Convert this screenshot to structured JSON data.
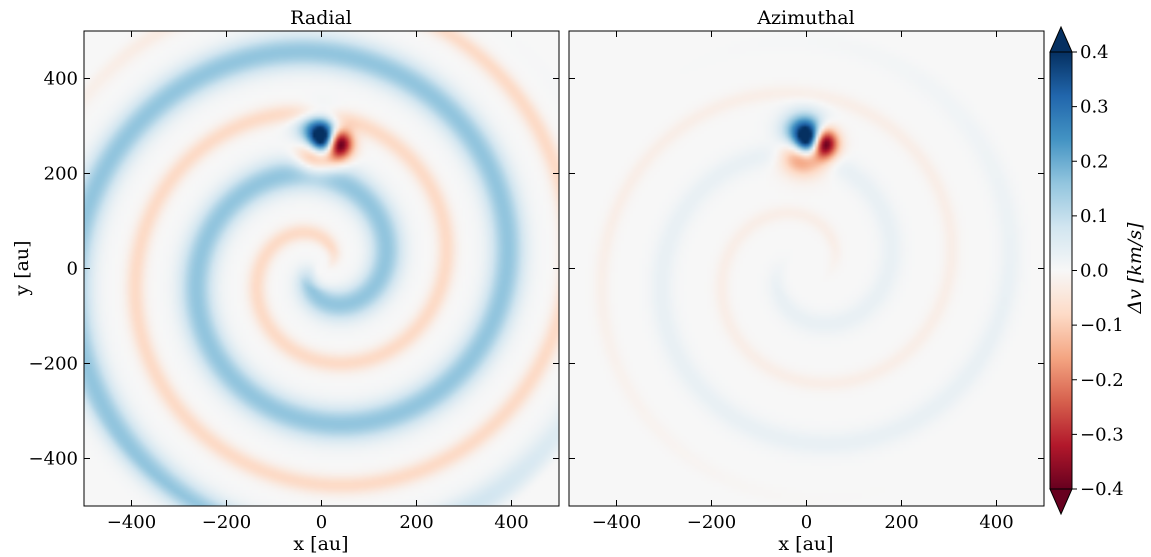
{
  "chart_data": [
    {
      "type": "heatmap",
      "title": "Radial",
      "xlabel": "x [au]",
      "ylabel": "y [au]",
      "xlim": [
        -500,
        500
      ],
      "ylim": [
        -500,
        500
      ],
      "xticks": [
        -400,
        -200,
        0,
        200,
        400
      ],
      "yticks": [
        -400,
        -200,
        0,
        200,
        400
      ],
      "xtick_labels": [
        "−400",
        "−200",
        "0",
        "200",
        "400"
      ],
      "ytick_labels": [
        "−400",
        "−200",
        "0",
        "200",
        "400"
      ],
      "features": [
        {
          "kind": "spiral-band",
          "r_start": 15,
          "r_end": 560,
          "arms": 1,
          "turns": 2.1,
          "phase_deg": 200,
          "amplitude": 0.16,
          "width": 26
        },
        {
          "kind": "spiral-band",
          "r_start": 15,
          "r_end": 560,
          "arms": 1,
          "turns": 2.1,
          "phase_deg": 20,
          "amplitude": -0.08,
          "width": 14
        },
        {
          "kind": "vortex",
          "x": 20,
          "y": 265,
          "amplitude": 0.4
        }
      ]
    },
    {
      "type": "heatmap",
      "title": "Azimuthal",
      "xlabel": "x [au]",
      "ylabel": "",
      "xlim": [
        -500,
        500
      ],
      "ylim": [
        -500,
        500
      ],
      "xticks": [
        -400,
        -200,
        0,
        200,
        400
      ],
      "yticks": [
        -400,
        -200,
        0,
        200,
        400
      ],
      "xtick_labels": [
        "−400",
        "−200",
        "0",
        "200",
        "400"
      ],
      "ytick_labels": [],
      "features": [
        {
          "kind": "spiral-band",
          "r_start": 60,
          "r_end": 420,
          "arms": 1,
          "turns": 1.4,
          "phase_deg": 200,
          "amplitude": 0.03,
          "width": 18
        },
        {
          "kind": "spiral-band",
          "r_start": 60,
          "r_end": 420,
          "arms": 1,
          "turns": 1.4,
          "phase_deg": 20,
          "amplitude": -0.025,
          "width": 12
        },
        {
          "kind": "vortex",
          "x": 20,
          "y": 265,
          "amplitude": 0.4
        }
      ]
    }
  ],
  "colorbar": {
    "label": "Δv [km/s]",
    "colormap": "RdBu",
    "extend": "both",
    "range": [
      -0.4,
      0.4
    ],
    "ticks": [
      0.4,
      0.3,
      0.2,
      0.1,
      0.0,
      -0.1,
      -0.2,
      -0.3,
      -0.4
    ],
    "tick_labels": [
      "0.4",
      "0.3",
      "0.2",
      "0.1",
      "0.0",
      "−0.1",
      "−0.2",
      "−0.3",
      "−0.4"
    ],
    "colors": [
      "#67001f",
      "#b2182b",
      "#d6604d",
      "#f4a582",
      "#fddbc7",
      "#f7f7f7",
      "#d1e5f0",
      "#92c5de",
      "#4393c3",
      "#2166ac",
      "#053061"
    ]
  }
}
